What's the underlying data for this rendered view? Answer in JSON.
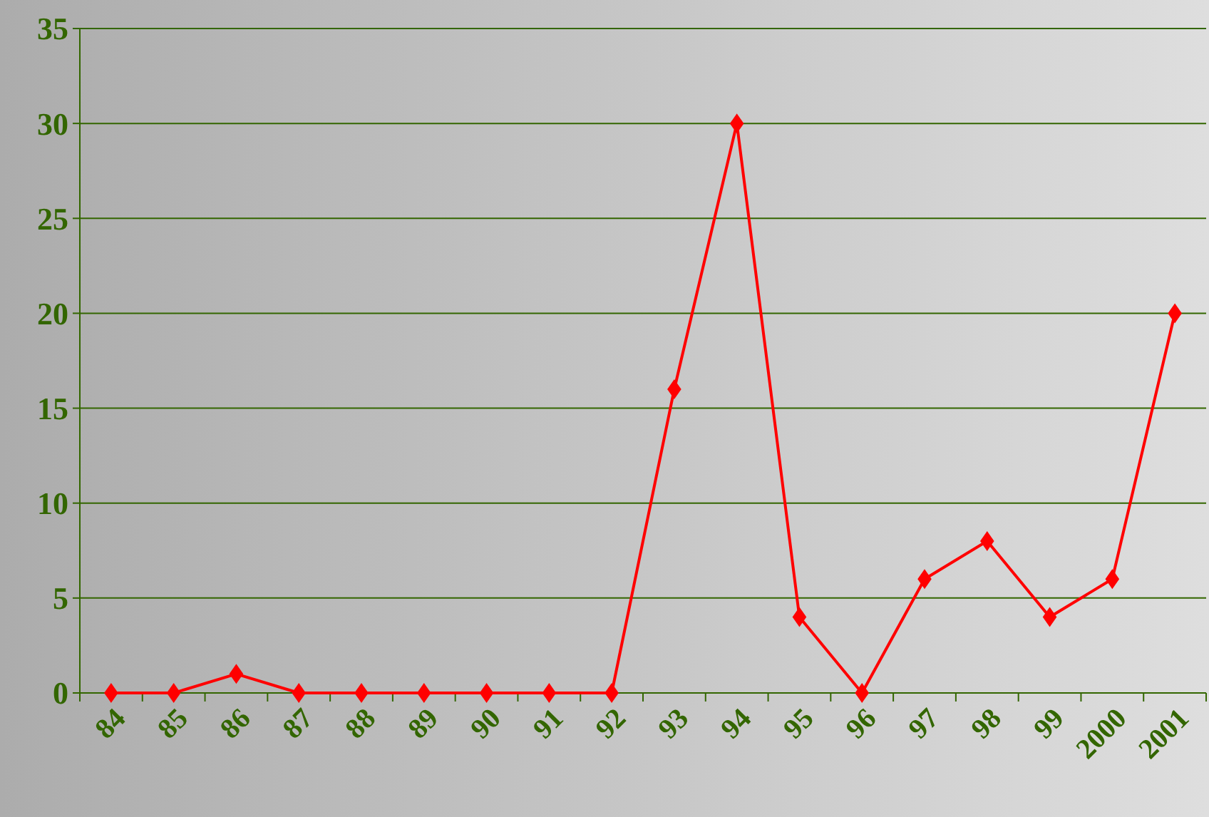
{
  "chart_data": {
    "type": "line",
    "categories": [
      "84",
      "85",
      "86",
      "87",
      "88",
      "89",
      "90",
      "91",
      "92",
      "93",
      "94",
      "95",
      "96",
      "97",
      "98",
      "99",
      "2000",
      "2001"
    ],
    "series": [
      {
        "color": "#ff0000",
        "values": [
          0,
          0,
          1,
          0,
          0,
          0,
          0,
          0,
          0,
          16,
          30,
          4,
          0,
          6,
          8,
          4,
          6,
          20
        ]
      }
    ],
    "ylim": [
      0,
      35
    ],
    "yticks": [
      0,
      5,
      10,
      15,
      20,
      25,
      30,
      35
    ],
    "grid": "y",
    "marker": "diamond",
    "line_style": "solid"
  }
}
